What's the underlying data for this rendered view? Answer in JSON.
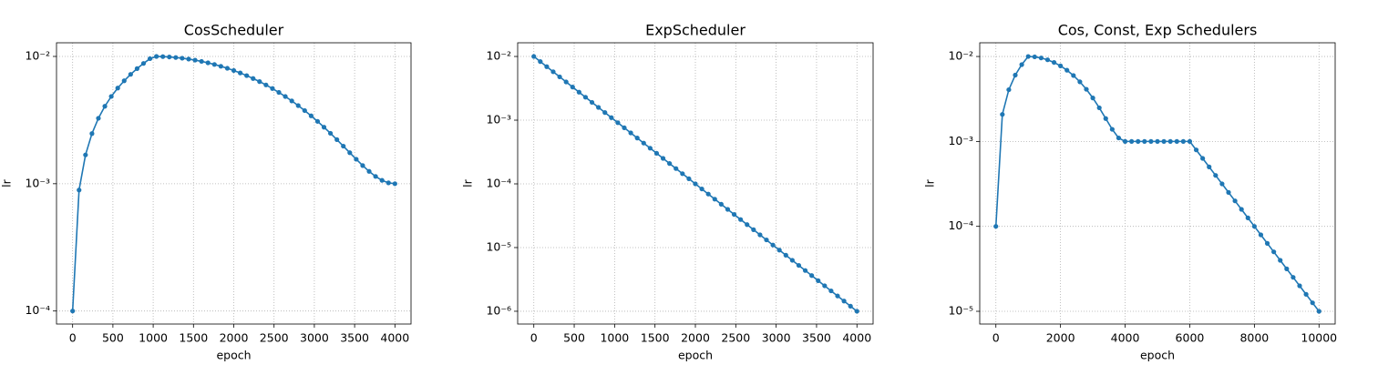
{
  "chart_data": [
    {
      "type": "line",
      "title": "CosScheduler",
      "x_label": "epoch",
      "y_label": "lr",
      "yscale": "log",
      "grid": true,
      "color": "#1f77b4",
      "x": [
        0,
        80,
        160,
        240,
        320,
        400,
        480,
        560,
        640,
        720,
        800,
        880,
        960,
        1040,
        1120,
        1200,
        1280,
        1360,
        1440,
        1520,
        1600,
        1680,
        1760,
        1840,
        1920,
        2000,
        2080,
        2160,
        2240,
        2320,
        2400,
        2480,
        2560,
        2640,
        2720,
        2800,
        2880,
        2960,
        3040,
        3120,
        3200,
        3280,
        3360,
        3440,
        3520,
        3600,
        3680,
        3760,
        3840,
        3920,
        4000
      ],
      "values": [
        0.0001,
        0.000892,
        0.001684,
        0.002476,
        0.003268,
        0.00406,
        0.004852,
        0.005644,
        0.006436,
        0.007228,
        0.00802,
        0.008812,
        0.009604,
        0.009996,
        0.009964,
        0.009902,
        0.009808,
        0.009684,
        0.009531,
        0.009349,
        0.009141,
        0.008907,
        0.008648,
        0.008368,
        0.008068,
        0.00775,
        0.007416,
        0.007069,
        0.00671,
        0.006343,
        0.00597,
        0.005594,
        0.005217,
        0.004843,
        0.004472,
        0.004109,
        0.003756,
        0.003415,
        0.003089,
        0.002779,
        0.002489,
        0.00222,
        0.001973,
        0.001752,
        0.001557,
        0.001389,
        0.00125,
        0.001141,
        0.001063,
        0.001016,
        0.001
      ],
      "xlim": [
        -200,
        4200
      ],
      "xticks": [
        0,
        500,
        1000,
        1500,
        2000,
        2500,
        3000,
        3500,
        4000
      ],
      "ylim": [
        7.9e-05,
        0.0128
      ],
      "yticks": [
        {
          "value": 0.0001,
          "label": "10⁻⁴"
        },
        {
          "value": 0.001,
          "label": "10⁻³"
        },
        {
          "value": 0.01,
          "label": "10⁻²"
        }
      ]
    },
    {
      "type": "line",
      "title": "ExpScheduler",
      "x_label": "epoch",
      "y_label": "lr",
      "yscale": "log",
      "grid": true,
      "color": "#1f77b4",
      "x": [
        0,
        80,
        160,
        240,
        320,
        400,
        480,
        560,
        640,
        720,
        800,
        880,
        960,
        1040,
        1120,
        1200,
        1280,
        1360,
        1440,
        1520,
        1600,
        1680,
        1760,
        1840,
        1920,
        2000,
        2080,
        2160,
        2240,
        2320,
        2400,
        2480,
        2560,
        2640,
        2720,
        2800,
        2880,
        2960,
        3040,
        3120,
        3200,
        3280,
        3360,
        3440,
        3520,
        3600,
        3680,
        3760,
        3840,
        3920,
        4000
      ],
      "values": [
        0.01,
        0.008318,
        0.006918,
        0.005754,
        0.004786,
        0.003981,
        0.003311,
        0.002754,
        0.002291,
        0.001905,
        0.001585,
        0.001318,
        0.001096,
        0.000912,
        0.0007586,
        0.000631,
        0.0005248,
        0.0004365,
        0.0003631,
        0.000302,
        0.0002512,
        0.0002089,
        0.0001738,
        0.0001445,
        0.0001202,
        0.0001,
        8.318e-05,
        6.918e-05,
        5.754e-05,
        4.786e-05,
        3.981e-05,
        3.311e-05,
        2.754e-05,
        2.291e-05,
        1.905e-05,
        1.585e-05,
        1.318e-05,
        1.096e-05,
        9.12e-06,
        7.586e-06,
        6.31e-06,
        5.248e-06,
        4.365e-06,
        3.631e-06,
        3.02e-06,
        2.512e-06,
        2.089e-06,
        1.738e-06,
        1.445e-06,
        1.202e-06,
        1e-06
      ],
      "xlim": [
        -200,
        4200
      ],
      "xticks": [
        0,
        500,
        1000,
        1500,
        2000,
        2500,
        3000,
        3500,
        4000
      ],
      "ylim": [
        6.3e-07,
        0.0164
      ],
      "yticks": [
        {
          "value": 1e-06,
          "label": "10⁻⁶"
        },
        {
          "value": 1e-05,
          "label": "10⁻⁵"
        },
        {
          "value": 0.0001,
          "label": "10⁻⁴"
        },
        {
          "value": 0.001,
          "label": "10⁻³"
        },
        {
          "value": 0.01,
          "label": "10⁻²"
        }
      ]
    },
    {
      "type": "line",
      "title": "Cos, Const, Exp Schedulers",
      "x_label": "epoch",
      "y_label": "lr",
      "yscale": "log",
      "grid": true,
      "color": "#1f77b4",
      "x": [
        0,
        200,
        400,
        600,
        800,
        1000,
        1200,
        1400,
        1600,
        1800,
        2000,
        2200,
        2400,
        2600,
        2800,
        3000,
        3200,
        3400,
        3600,
        3800,
        4000,
        4200,
        4400,
        4600,
        4800,
        5000,
        5200,
        5400,
        5600,
        5800,
        6000,
        6200,
        6400,
        6600,
        6800,
        7000,
        7200,
        7400,
        7600,
        7800,
        8000,
        8200,
        8400,
        8600,
        8800,
        9000,
        9200,
        9400,
        9600,
        9800,
        10000
      ],
      "values": [
        0.0001,
        0.00208,
        0.00406,
        0.00604,
        0.00802,
        0.01,
        0.009902,
        0.009611,
        0.009141,
        0.008511,
        0.00775,
        0.00689,
        0.00597,
        0.00503,
        0.00411,
        0.00325,
        0.002489,
        0.001859,
        0.001389,
        0.001098,
        0.001,
        0.001,
        0.001,
        0.001,
        0.001,
        0.001,
        0.001,
        0.001,
        0.001,
        0.001,
        0.001,
        0.0007943,
        0.000631,
        0.0005012,
        0.0003981,
        0.0003162,
        0.0002512,
        0.0001995,
        0.0001585,
        0.0001259,
        0.0001,
        7.943e-05,
        6.31e-05,
        5.012e-05,
        3.981e-05,
        3.162e-05,
        2.512e-05,
        1.995e-05,
        1.585e-05,
        1.259e-05,
        1e-05
      ],
      "xlim": [
        -500,
        10500
      ],
      "xticks": [
        0,
        2000,
        4000,
        6000,
        8000,
        10000
      ],
      "ylim": [
        7.08e-06,
        0.0145
      ],
      "yticks": [
        {
          "value": 1e-05,
          "label": "10⁻⁵"
        },
        {
          "value": 0.0001,
          "label": "10⁻⁴"
        },
        {
          "value": 0.001,
          "label": "10⁻³"
        },
        {
          "value": 0.01,
          "label": "10⁻²"
        }
      ]
    }
  ]
}
